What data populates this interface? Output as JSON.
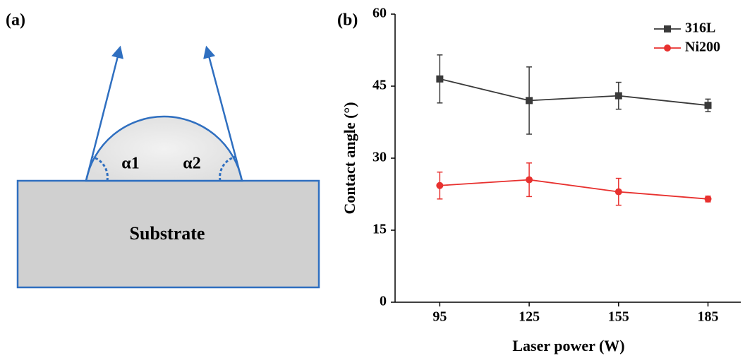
{
  "panel_a": {
    "label": "(a)",
    "angle_left": "α1",
    "angle_right": "α2",
    "substrate": "Substrate"
  },
  "chart_data": {
    "type": "line",
    "panel_label": "(b)",
    "x_label": "Laser power (W)",
    "y_label": "Contact angle (°)",
    "x": [
      95,
      125,
      155,
      185
    ],
    "xlim": [
      80,
      196
    ],
    "xticks": [
      95,
      125,
      155,
      185
    ],
    "ylim": [
      0,
      60
    ],
    "yticks": [
      0,
      15,
      30,
      45,
      60
    ],
    "legend": "top-right",
    "series": [
      {
        "name": "316L",
        "color": "#3a3a3a",
        "marker": "square",
        "values": [
          46.5,
          42,
          43,
          41
        ],
        "errors": [
          5,
          7,
          2.8,
          1.3
        ]
      },
      {
        "name": "Ni200",
        "color": "#e8312f",
        "marker": "circle",
        "values": [
          24.3,
          25.5,
          23,
          21.5
        ],
        "errors": [
          2.8,
          3.5,
          2.8,
          0.6
        ]
      }
    ]
  }
}
